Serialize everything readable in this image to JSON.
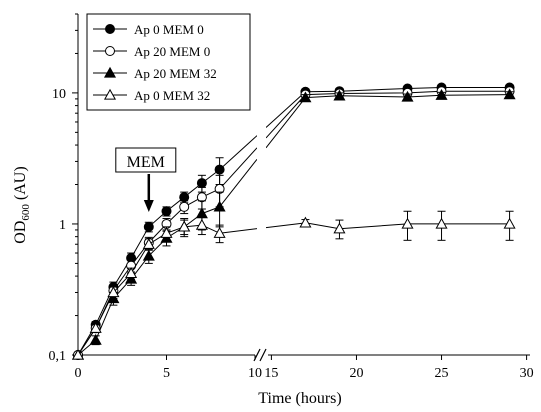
{
  "chart_data": {
    "type": "line",
    "ylabel_main": "OD",
    "ylabel_sub": "600",
    "ylabel_rest": " (AU)",
    "xlabel": "Time  (hours)",
    "y_scale": "log",
    "ylim": [
      0.1,
      40
    ],
    "y_ticks": [
      {
        "value": 0.1,
        "label": "0,1"
      },
      {
        "value": 1,
        "label": "1"
      },
      {
        "value": 10,
        "label": "10"
      }
    ],
    "x_segments": [
      {
        "range": [
          0,
          10
        ],
        "ticks": [
          {
            "value": 0,
            "label": "0"
          },
          {
            "value": 5,
            "label": "5"
          },
          {
            "value": 10,
            "label": "10"
          }
        ]
      },
      {
        "range": [
          14.8,
          30.2
        ],
        "ticks": [
          {
            "value": 15,
            "label": "15"
          },
          {
            "value": 20,
            "label": "20"
          },
          {
            "value": 25,
            "label": "25"
          },
          {
            "value": 30,
            "label": "30"
          }
        ]
      }
    ],
    "axis_break": true,
    "annotation": {
      "label": "MEM",
      "x": 4
    },
    "legend_position": "top-left",
    "series": [
      {
        "name": "Ap 0 MEM 0",
        "marker": "circle",
        "fill": "#000000",
        "points": [
          {
            "x": 0,
            "y": 0.1,
            "err": 0
          },
          {
            "x": 1,
            "y": 0.17,
            "err": 0.01
          },
          {
            "x": 2,
            "y": 0.33,
            "err": 0.03
          },
          {
            "x": 3,
            "y": 0.55,
            "err": 0.05
          },
          {
            "x": 4,
            "y": 0.95,
            "err": 0.08
          },
          {
            "x": 5,
            "y": 1.25,
            "err": 0.1
          },
          {
            "x": 6,
            "y": 1.6,
            "err": 0.15
          },
          {
            "x": 7,
            "y": 2.05,
            "err": 0.3
          },
          {
            "x": 8,
            "y": 2.6,
            "err": 0.6
          },
          {
            "x": 17,
            "y": 10.2,
            "err": 0.5
          },
          {
            "x": 19,
            "y": 10.3,
            "err": 0.5
          },
          {
            "x": 23,
            "y": 10.8,
            "err": 0.5
          },
          {
            "x": 25,
            "y": 11,
            "err": 0.5
          },
          {
            "x": 29,
            "y": 11,
            "err": 0.5
          }
        ]
      },
      {
        "name": "Ap 20 MEM 0",
        "marker": "circle",
        "fill": "#ffffff",
        "points": [
          {
            "x": 0,
            "y": 0.1,
            "err": 0
          },
          {
            "x": 1,
            "y": 0.16,
            "err": 0.01
          },
          {
            "x": 2,
            "y": 0.31,
            "err": 0.03
          },
          {
            "x": 3,
            "y": 0.48,
            "err": 0.05
          },
          {
            "x": 4,
            "y": 0.72,
            "err": 0.07
          },
          {
            "x": 5,
            "y": 1.0,
            "err": 0.1
          },
          {
            "x": 6,
            "y": 1.35,
            "err": 0.15
          },
          {
            "x": 7,
            "y": 1.6,
            "err": 0.3
          },
          {
            "x": 8,
            "y": 1.85,
            "err": 0.5
          },
          {
            "x": 17,
            "y": 9.7,
            "err": 0.5
          },
          {
            "x": 19,
            "y": 9.9,
            "err": 0.5
          },
          {
            "x": 23,
            "y": 10.0,
            "err": 0.5
          },
          {
            "x": 25,
            "y": 10.3,
            "err": 0.5
          },
          {
            "x": 29,
            "y": 10.3,
            "err": 0.5
          }
        ]
      },
      {
        "name": "Ap 20 MEM 32",
        "marker": "triangle",
        "fill": "#000000",
        "points": [
          {
            "x": 0,
            "y": 0.1,
            "err": 0
          },
          {
            "x": 1,
            "y": 0.13,
            "err": 0.01
          },
          {
            "x": 2,
            "y": 0.27,
            "err": 0.03
          },
          {
            "x": 3,
            "y": 0.38,
            "err": 0.04
          },
          {
            "x": 4,
            "y": 0.57,
            "err": 0.07
          },
          {
            "x": 5,
            "y": 0.78,
            "err": 0.1
          },
          {
            "x": 6,
            "y": 0.95,
            "err": 0.15
          },
          {
            "x": 7,
            "y": 1.2,
            "err": 0.3
          },
          {
            "x": 8,
            "y": 1.35,
            "err": 0.4
          },
          {
            "x": 17,
            "y": 9.2,
            "err": 0.5
          },
          {
            "x": 19,
            "y": 9.5,
            "err": 0.5
          },
          {
            "x": 23,
            "y": 9.3,
            "err": 0.5
          },
          {
            "x": 25,
            "y": 9.6,
            "err": 0.5
          },
          {
            "x": 29,
            "y": 9.7,
            "err": 0.5
          }
        ]
      },
      {
        "name": "Ap 0 MEM 32",
        "marker": "triangle",
        "fill": "#ffffff",
        "points": [
          {
            "x": 0,
            "y": 0.1,
            "err": 0
          },
          {
            "x": 1,
            "y": 0.16,
            "err": 0.01
          },
          {
            "x": 2,
            "y": 0.3,
            "err": 0.03
          },
          {
            "x": 3,
            "y": 0.42,
            "err": 0.04
          },
          {
            "x": 4,
            "y": 0.7,
            "err": 0.07
          },
          {
            "x": 5,
            "y": 0.85,
            "err": 0.1
          },
          {
            "x": 6,
            "y": 0.95,
            "err": 0.12
          },
          {
            "x": 7,
            "y": 0.98,
            "err": 0.15
          },
          {
            "x": 8,
            "y": 0.85,
            "err": 0.13
          },
          {
            "x": 17,
            "y": 1.02,
            "err": 0.06
          },
          {
            "x": 19,
            "y": 0.92,
            "err": 0.15
          },
          {
            "x": 23,
            "y": 1.0,
            "err": 0.25
          },
          {
            "x": 25,
            "y": 1.0,
            "err": 0.25
          },
          {
            "x": 29,
            "y": 1.0,
            "err": 0.25
          }
        ]
      }
    ]
  }
}
